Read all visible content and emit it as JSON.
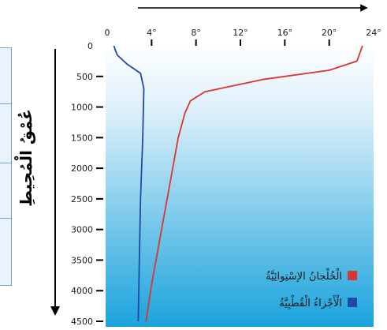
{
  "chart_data": {
    "type": "line",
    "title": "",
    "xlabel": "",
    "ylabel": "عُمْقُ الْمُحِيطِ",
    "x_ticks": [
      "0",
      "4°",
      "8°",
      "12°",
      "16°",
      "20°",
      "24°"
    ],
    "y_ticks": [
      "0",
      "500",
      "1000",
      "1500",
      "2000",
      "2500",
      "3000",
      "3500",
      "4000",
      "4500"
    ],
    "xlim": [
      0,
      24
    ],
    "ylim": [
      0,
      4500
    ],
    "series": [
      {
        "name": "الْخُلْجانُ الإسْتِوائِيَّةُ",
        "color": "#d9362f",
        "points": [
          [
            23,
            0
          ],
          [
            22.5,
            250
          ],
          [
            20,
            400
          ],
          [
            14,
            550
          ],
          [
            8.8,
            750
          ],
          [
            7.5,
            900
          ],
          [
            7.0,
            1100
          ],
          [
            6.7,
            1300
          ],
          [
            6.4,
            1500
          ],
          [
            6.0,
            1900
          ],
          [
            5.5,
            2400
          ],
          [
            5.0,
            2900
          ],
          [
            4.5,
            3400
          ],
          [
            4.0,
            3900
          ],
          [
            3.5,
            4500
          ]
        ]
      },
      {
        "name": "الْأَجْزاءُ الْقُطْبِيَّةُ",
        "color": "#2149a8",
        "points": [
          [
            0.6,
            0
          ],
          [
            0.9,
            150
          ],
          [
            1.8,
            300
          ],
          [
            3.0,
            450
          ],
          [
            3.3,
            700
          ],
          [
            3.2,
            1500
          ],
          [
            3.0,
            2500
          ],
          [
            2.9,
            3500
          ],
          [
            2.8,
            4500
          ]
        ]
      }
    ],
    "legend": "bottom-right",
    "grid": false,
    "colors": {
      "background_top": "#ffffff",
      "background_bottom": "#1aa3dd",
      "axis": "#000000"
    }
  }
}
